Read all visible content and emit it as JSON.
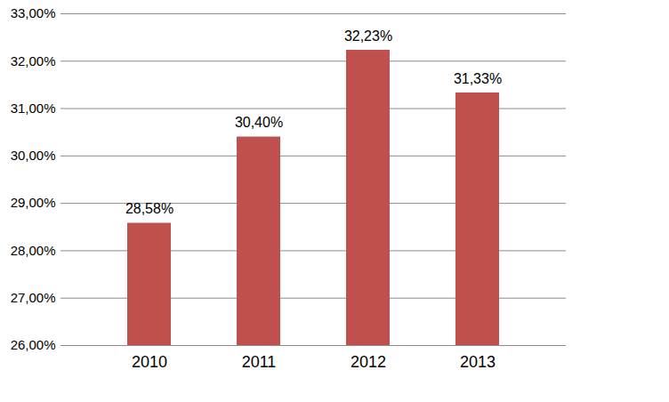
{
  "chart_data": {
    "type": "bar",
    "categories": [
      "2010",
      "2011",
      "2012",
      "2013"
    ],
    "values": [
      28.58,
      30.4,
      32.23,
      31.33
    ],
    "value_labels": [
      "28,58%",
      "30,40%",
      "32,23%",
      "31,33%"
    ],
    "color": "#c0504d",
    "ylim": [
      26,
      33
    ],
    "yticks": [
      {
        "value": 26,
        "label": "26,00%"
      },
      {
        "value": 27,
        "label": "27,00%"
      },
      {
        "value": 28,
        "label": "28,00%"
      },
      {
        "value": 29,
        "label": "29,00%"
      },
      {
        "value": 30,
        "label": "30,00%"
      },
      {
        "value": 31,
        "label": "31,00%"
      },
      {
        "value": 32,
        "label": "32,00%"
      },
      {
        "value": 33,
        "label": "33,00%"
      }
    ],
    "grid": true,
    "data_labels": true
  }
}
